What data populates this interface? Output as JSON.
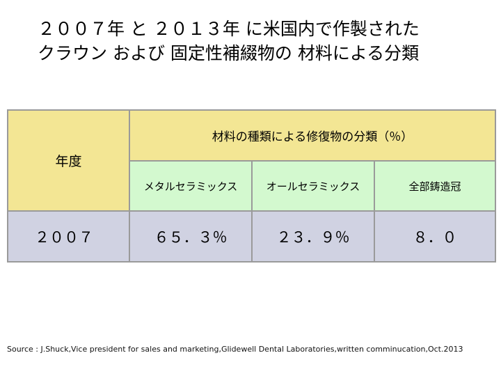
{
  "title": {
    "line1": "２００７年 と ２０１３年 に米国内で作製された",
    "line2": "クラウン および 固定性補綴物の 材料による分類"
  },
  "table": {
    "year_header": "年度",
    "group_header": "材料の種類による修復物の分類（％）",
    "columns": [
      "メタルセラミックス",
      "オールセラミックス",
      "全部鋳造冠"
    ],
    "rows": [
      {
        "year": "２００７",
        "values": [
          "６５．３％",
          "２３．９％",
          "８．０"
        ]
      }
    ]
  },
  "source": "Source : J.Shuck,Vice president for sales and marketing,Glidewell Dental Laboratories,written comminucation,Oct.2013"
}
